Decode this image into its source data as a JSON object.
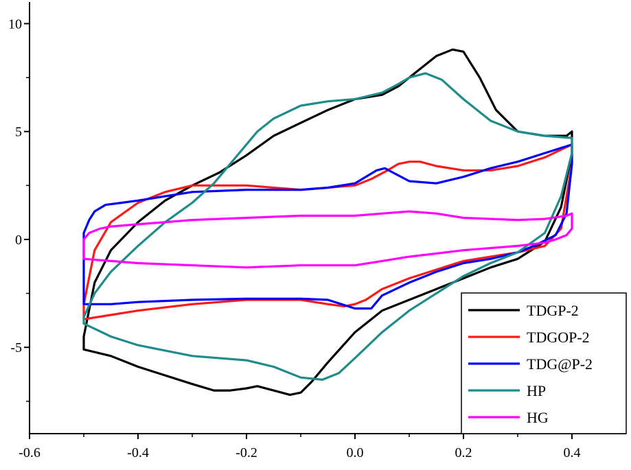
{
  "chart_data": {
    "type": "line",
    "title": "",
    "xlabel": "",
    "ylabel": "",
    "xlim": [
      -0.6,
      0.5
    ],
    "ylim": [
      -9,
      11
    ],
    "grid": false,
    "legend_position": "bottom-right",
    "x_ticks": [
      {
        "value": -0.6,
        "label": "-0.6"
      },
      {
        "value": -0.4,
        "label": "-0.4"
      },
      {
        "value": -0.2,
        "label": "-0.2"
      },
      {
        "value": 0.0,
        "label": "0.0"
      },
      {
        "value": 0.2,
        "label": "0.2"
      },
      {
        "value": 0.4,
        "label": "0.4"
      }
    ],
    "y_ticks": [
      {
        "value": 10,
        "label": "10"
      },
      {
        "value": 5,
        "label": "5"
      },
      {
        "value": 0,
        "label": "0"
      },
      {
        "value": -5,
        "label": "-5"
      }
    ],
    "series": [
      {
        "name": "TDGP-2",
        "color": "#000000",
        "x": [
          -0.5,
          -0.48,
          -0.45,
          -0.4,
          -0.35,
          -0.3,
          -0.25,
          -0.2,
          -0.15,
          -0.1,
          -0.05,
          0.0,
          0.05,
          0.08,
          0.12,
          0.15,
          0.18,
          0.2,
          0.23,
          0.26,
          0.3,
          0.35,
          0.39,
          0.4,
          0.4,
          0.38,
          0.35,
          0.3,
          0.25,
          0.2,
          0.15,
          0.1,
          0.05,
          0.0,
          -0.05,
          -0.08,
          -0.1,
          -0.12,
          -0.15,
          -0.18,
          -0.2,
          -0.23,
          -0.26,
          -0.3,
          -0.35,
          -0.4,
          -0.45,
          -0.5,
          -0.5
        ],
        "y": [
          -4.5,
          -2.0,
          -0.5,
          0.8,
          1.8,
          2.5,
          3.1,
          3.9,
          4.8,
          5.4,
          6.0,
          6.5,
          6.7,
          7.1,
          7.9,
          8.5,
          8.8,
          8.7,
          7.5,
          6.0,
          5.0,
          4.8,
          4.8,
          5.0,
          4.0,
          1.5,
          -0.1,
          -0.9,
          -1.3,
          -1.8,
          -2.3,
          -2.8,
          -3.3,
          -4.3,
          -5.7,
          -6.6,
          -7.1,
          -7.2,
          -7.0,
          -6.8,
          -6.9,
          -7.0,
          -7.0,
          -6.7,
          -6.3,
          -5.9,
          -5.4,
          -5.1,
          -4.5
        ]
      },
      {
        "name": "TDGOP-2",
        "color": "#ff1a1a",
        "x": [
          -0.5,
          -0.48,
          -0.45,
          -0.4,
          -0.35,
          -0.3,
          -0.25,
          -0.2,
          -0.15,
          -0.1,
          -0.05,
          0.0,
          0.03,
          0.06,
          0.08,
          0.1,
          0.12,
          0.15,
          0.2,
          0.25,
          0.3,
          0.35,
          0.4,
          0.4,
          0.38,
          0.35,
          0.3,
          0.25,
          0.2,
          0.15,
          0.1,
          0.05,
          0.02,
          0.0,
          -0.02,
          -0.05,
          -0.1,
          -0.2,
          -0.3,
          -0.4,
          -0.45,
          -0.5,
          -0.5
        ],
        "y": [
          -3.0,
          -0.5,
          0.8,
          1.7,
          2.2,
          2.5,
          2.5,
          2.5,
          2.4,
          2.3,
          2.4,
          2.5,
          2.8,
          3.2,
          3.5,
          3.6,
          3.6,
          3.4,
          3.2,
          3.2,
          3.4,
          3.8,
          4.4,
          3.5,
          0.5,
          -0.3,
          -0.6,
          -0.8,
          -1.0,
          -1.4,
          -1.8,
          -2.3,
          -2.8,
          -3.0,
          -3.1,
          -3.0,
          -2.8,
          -2.8,
          -3.0,
          -3.3,
          -3.5,
          -3.7,
          -3.0
        ]
      },
      {
        "name": "TDG@P-2",
        "color": "#0000ff",
        "x": [
          -0.5,
          -0.5,
          -0.49,
          -0.48,
          -0.46,
          -0.43,
          -0.4,
          -0.35,
          -0.3,
          -0.2,
          -0.1,
          -0.05,
          0.0,
          0.02,
          0.04,
          0.055,
          0.07,
          0.1,
          0.15,
          0.2,
          0.25,
          0.3,
          0.35,
          0.4,
          0.4,
          0.39,
          0.37,
          0.33,
          0.3,
          0.25,
          0.2,
          0.15,
          0.1,
          0.05,
          0.03,
          0.0,
          -0.05,
          -0.1,
          -0.2,
          -0.3,
          -0.4,
          -0.45,
          -0.5,
          -0.5
        ],
        "y": [
          -3.0,
          0.3,
          0.9,
          1.3,
          1.6,
          1.7,
          1.8,
          2.0,
          2.2,
          2.3,
          2.3,
          2.4,
          2.6,
          2.9,
          3.2,
          3.3,
          3.1,
          2.7,
          2.6,
          2.9,
          3.3,
          3.6,
          4.0,
          4.4,
          3.5,
          1.2,
          0.2,
          -0.3,
          -0.6,
          -0.9,
          -1.1,
          -1.5,
          -2.0,
          -2.6,
          -3.2,
          -3.2,
          -2.8,
          -2.75,
          -2.75,
          -2.8,
          -2.9,
          -3.0,
          -3.0,
          -3.0
        ]
      },
      {
        "name": "HP",
        "color": "#1f8c8c",
        "x": [
          -0.5,
          -0.48,
          -0.45,
          -0.4,
          -0.35,
          -0.3,
          -0.26,
          -0.22,
          -0.18,
          -0.15,
          -0.1,
          -0.05,
          0.0,
          0.05,
          0.08,
          0.1,
          0.13,
          0.16,
          0.2,
          0.25,
          0.3,
          0.35,
          0.4,
          0.4,
          0.38,
          0.35,
          0.3,
          0.25,
          0.2,
          0.15,
          0.1,
          0.05,
          0.0,
          -0.03,
          -0.06,
          -0.1,
          -0.15,
          -0.2,
          -0.3,
          -0.4,
          -0.45,
          -0.5,
          -0.5
        ],
        "y": [
          -3.6,
          -2.5,
          -1.5,
          -0.3,
          0.8,
          1.7,
          2.6,
          3.8,
          5.0,
          5.6,
          6.2,
          6.4,
          6.5,
          6.8,
          7.2,
          7.5,
          7.7,
          7.4,
          6.5,
          5.5,
          5.0,
          4.8,
          4.7,
          4.0,
          2.0,
          0.3,
          -0.6,
          -1.1,
          -1.7,
          -2.5,
          -3.3,
          -4.3,
          -5.5,
          -6.2,
          -6.5,
          -6.4,
          -5.9,
          -5.6,
          -5.4,
          -4.9,
          -4.5,
          -3.9,
          -3.6
        ]
      },
      {
        "name": "HG",
        "color": "#ff00ff",
        "x": [
          -0.5,
          -0.5,
          -0.49,
          -0.47,
          -0.45,
          -0.4,
          -0.3,
          -0.2,
          -0.1,
          0.0,
          0.05,
          0.1,
          0.15,
          0.2,
          0.3,
          0.35,
          0.39,
          0.4,
          0.4,
          0.39,
          0.37,
          0.35,
          0.3,
          0.2,
          0.1,
          0.05,
          0.0,
          -0.05,
          -0.1,
          -0.2,
          -0.3,
          -0.4,
          -0.45,
          -0.5,
          -0.5
        ],
        "y": [
          -0.8,
          0.0,
          0.3,
          0.5,
          0.6,
          0.7,
          0.9,
          1.0,
          1.1,
          1.1,
          1.2,
          1.3,
          1.2,
          1.0,
          0.9,
          0.95,
          1.1,
          1.2,
          0.5,
          0.2,
          0.0,
          -0.15,
          -0.3,
          -0.5,
          -0.8,
          -1.0,
          -1.2,
          -1.2,
          -1.2,
          -1.3,
          -1.2,
          -1.1,
          -1.0,
          -0.9,
          -0.8
        ]
      }
    ]
  }
}
